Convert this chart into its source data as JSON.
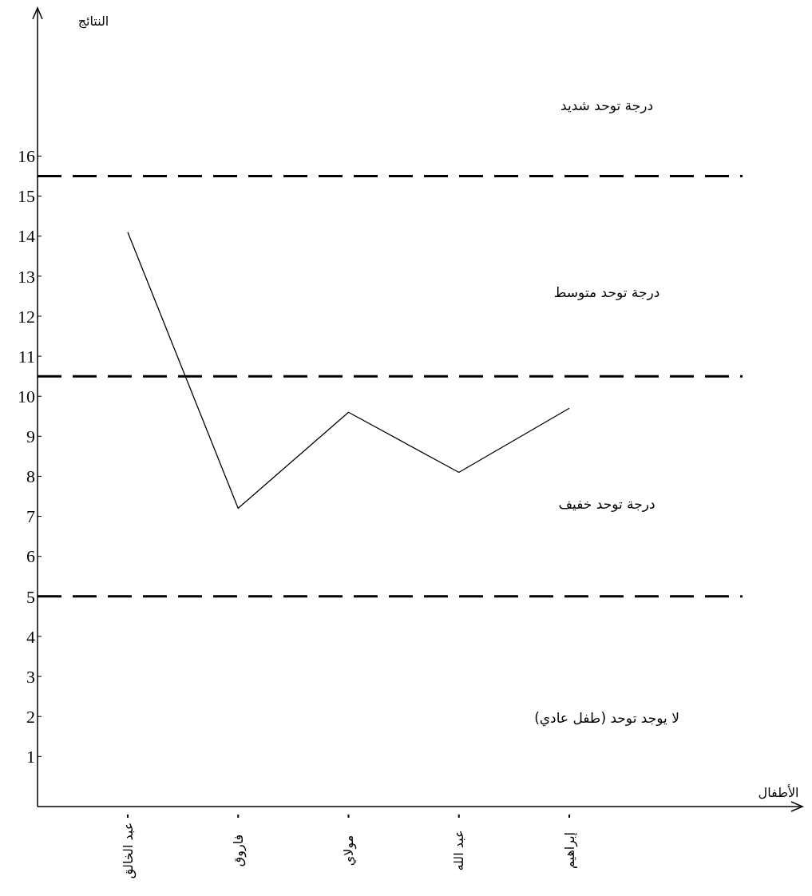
{
  "chart_data": {
    "type": "line",
    "ylabel": "النتائج",
    "categories": [
      "عبد الخالق",
      "فاروق",
      "مولاي",
      "عبد الله",
      "إبراهيم"
    ],
    "series": [
      {
        "color": "#000000",
        "values": [
          14.1,
          7.2,
          9.6,
          8.1,
          9.7
        ]
      }
    ],
    "ylim": [
      -0.25,
      19.7
    ],
    "yticks": [
      1,
      2,
      3,
      4,
      5,
      6,
      7,
      8,
      9,
      10,
      11,
      12,
      13,
      14,
      15,
      16
    ],
    "grid": false,
    "marker": "none",
    "line_style": "solid",
    "ref_lines": [
      {
        "axis": "y",
        "value": 15.5,
        "color": "#000000",
        "line_style": "dashed"
      },
      {
        "axis": "y",
        "value": 10.5,
        "color": "#000000",
        "line_style": "dashed"
      },
      {
        "axis": "y",
        "value": 5,
        "color": "#000000",
        "line_style": "dashed"
      }
    ],
    "annotations": [
      "درجة توحد شديد",
      "درجة توحد متوسط",
      "درجة توحد خفيف",
      "لا يوجد توحد (طفل عادي)",
      "الأطفال"
    ]
  }
}
